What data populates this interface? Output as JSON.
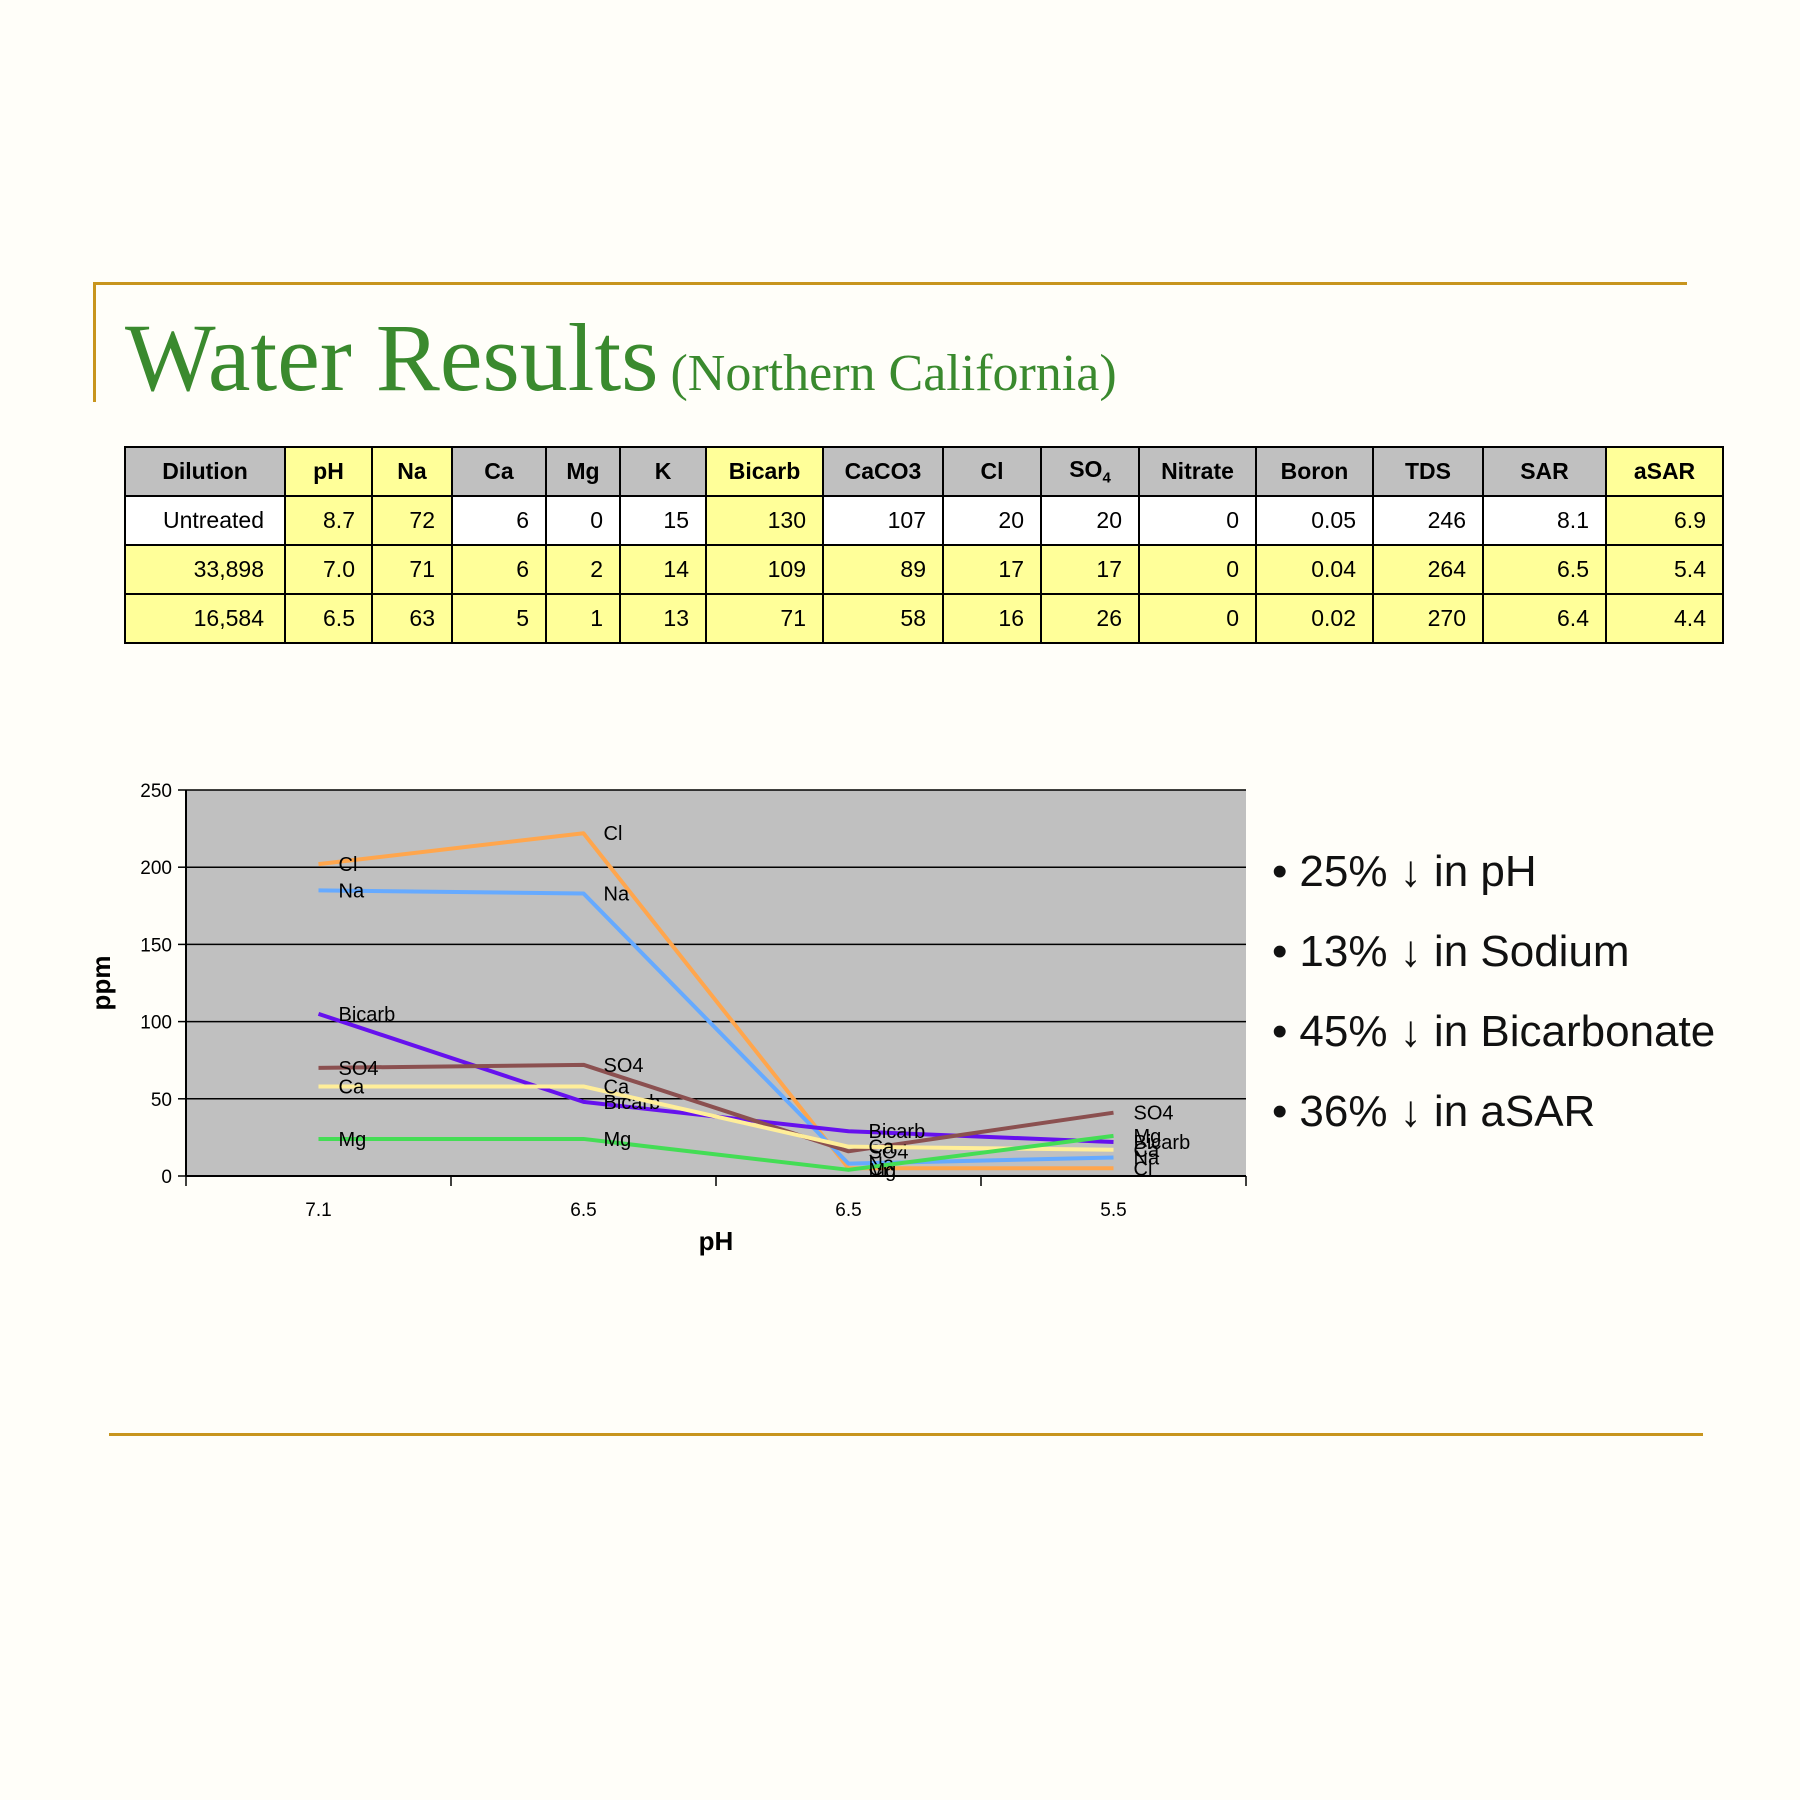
{
  "title": "Water Results",
  "subtitle": "(Northern California)",
  "table": {
    "headers": [
      {
        "label": "Dilution",
        "hl": false
      },
      {
        "label": "pH",
        "hl": true
      },
      {
        "label": "Na",
        "hl": true
      },
      {
        "label": "Ca",
        "hl": false
      },
      {
        "label": "Mg",
        "hl": false
      },
      {
        "label": "K",
        "hl": false
      },
      {
        "label": "Bicarb",
        "hl": true
      },
      {
        "label": "CaCO3",
        "hl": false
      },
      {
        "label": "Cl",
        "hl": false
      },
      {
        "label": "SO",
        "sub": "4",
        "hl": false
      },
      {
        "label": "Nitrate",
        "hl": false
      },
      {
        "label": "Boron",
        "hl": false
      },
      {
        "label": "TDS",
        "hl": false
      },
      {
        "label": "SAR",
        "hl": false
      },
      {
        "label": "aSAR",
        "hl": true
      }
    ],
    "rows": [
      {
        "rowhl": false,
        "cells": [
          "Untreated",
          "8.7",
          "72",
          "6",
          "0",
          "15",
          "130",
          "107",
          "20",
          "20",
          "0",
          "0.05",
          "246",
          "8.1",
          "6.9"
        ]
      },
      {
        "rowhl": true,
        "cells": [
          "33,898",
          "7.0",
          "71",
          "6",
          "2",
          "14",
          "109",
          "89",
          "17",
          "17",
          "0",
          "0.04",
          "264",
          "6.5",
          "5.4"
        ]
      },
      {
        "rowhl": true,
        "cells": [
          "16,584",
          "6.5",
          "63",
          "5",
          "1",
          "13",
          "71",
          "58",
          "16",
          "26",
          "0",
          "0.02",
          "270",
          "6.4",
          "4.4"
        ]
      }
    ]
  },
  "chart_data": {
    "type": "line",
    "categories": [
      "7.1",
      "6.5",
      "6.5",
      "5.5"
    ],
    "xlabel": "pH",
    "ylabel": "ppm",
    "ylim": [
      0,
      250
    ],
    "yticks": [
      0,
      50,
      100,
      150,
      200,
      250
    ],
    "grid": true,
    "legend": "none (data labels at each point)",
    "series": [
      {
        "name": "Cl",
        "color": "#ffa64d",
        "values": [
          202,
          222,
          5,
          5
        ]
      },
      {
        "name": "Na",
        "color": "#66aaff",
        "values": [
          185,
          183,
          8,
          12
        ]
      },
      {
        "name": "Bicarb",
        "color": "#6611ee",
        "values": [
          105,
          48,
          29,
          22
        ]
      },
      {
        "name": "SO4",
        "color": "#8b5050",
        "values": [
          70,
          72,
          16,
          41
        ]
      },
      {
        "name": "Ca",
        "color": "#ffee99",
        "values": [
          58,
          58,
          19,
          17
        ]
      },
      {
        "name": "Mg",
        "color": "#44dd55",
        "values": [
          24,
          24,
          4,
          26
        ]
      }
    ]
  },
  "bullets": [
    "25% ↓ in pH",
    "13% ↓ in Sodium",
    "45% ↓ in Bicarbonate",
    "36% ↓ in aSAR"
  ]
}
